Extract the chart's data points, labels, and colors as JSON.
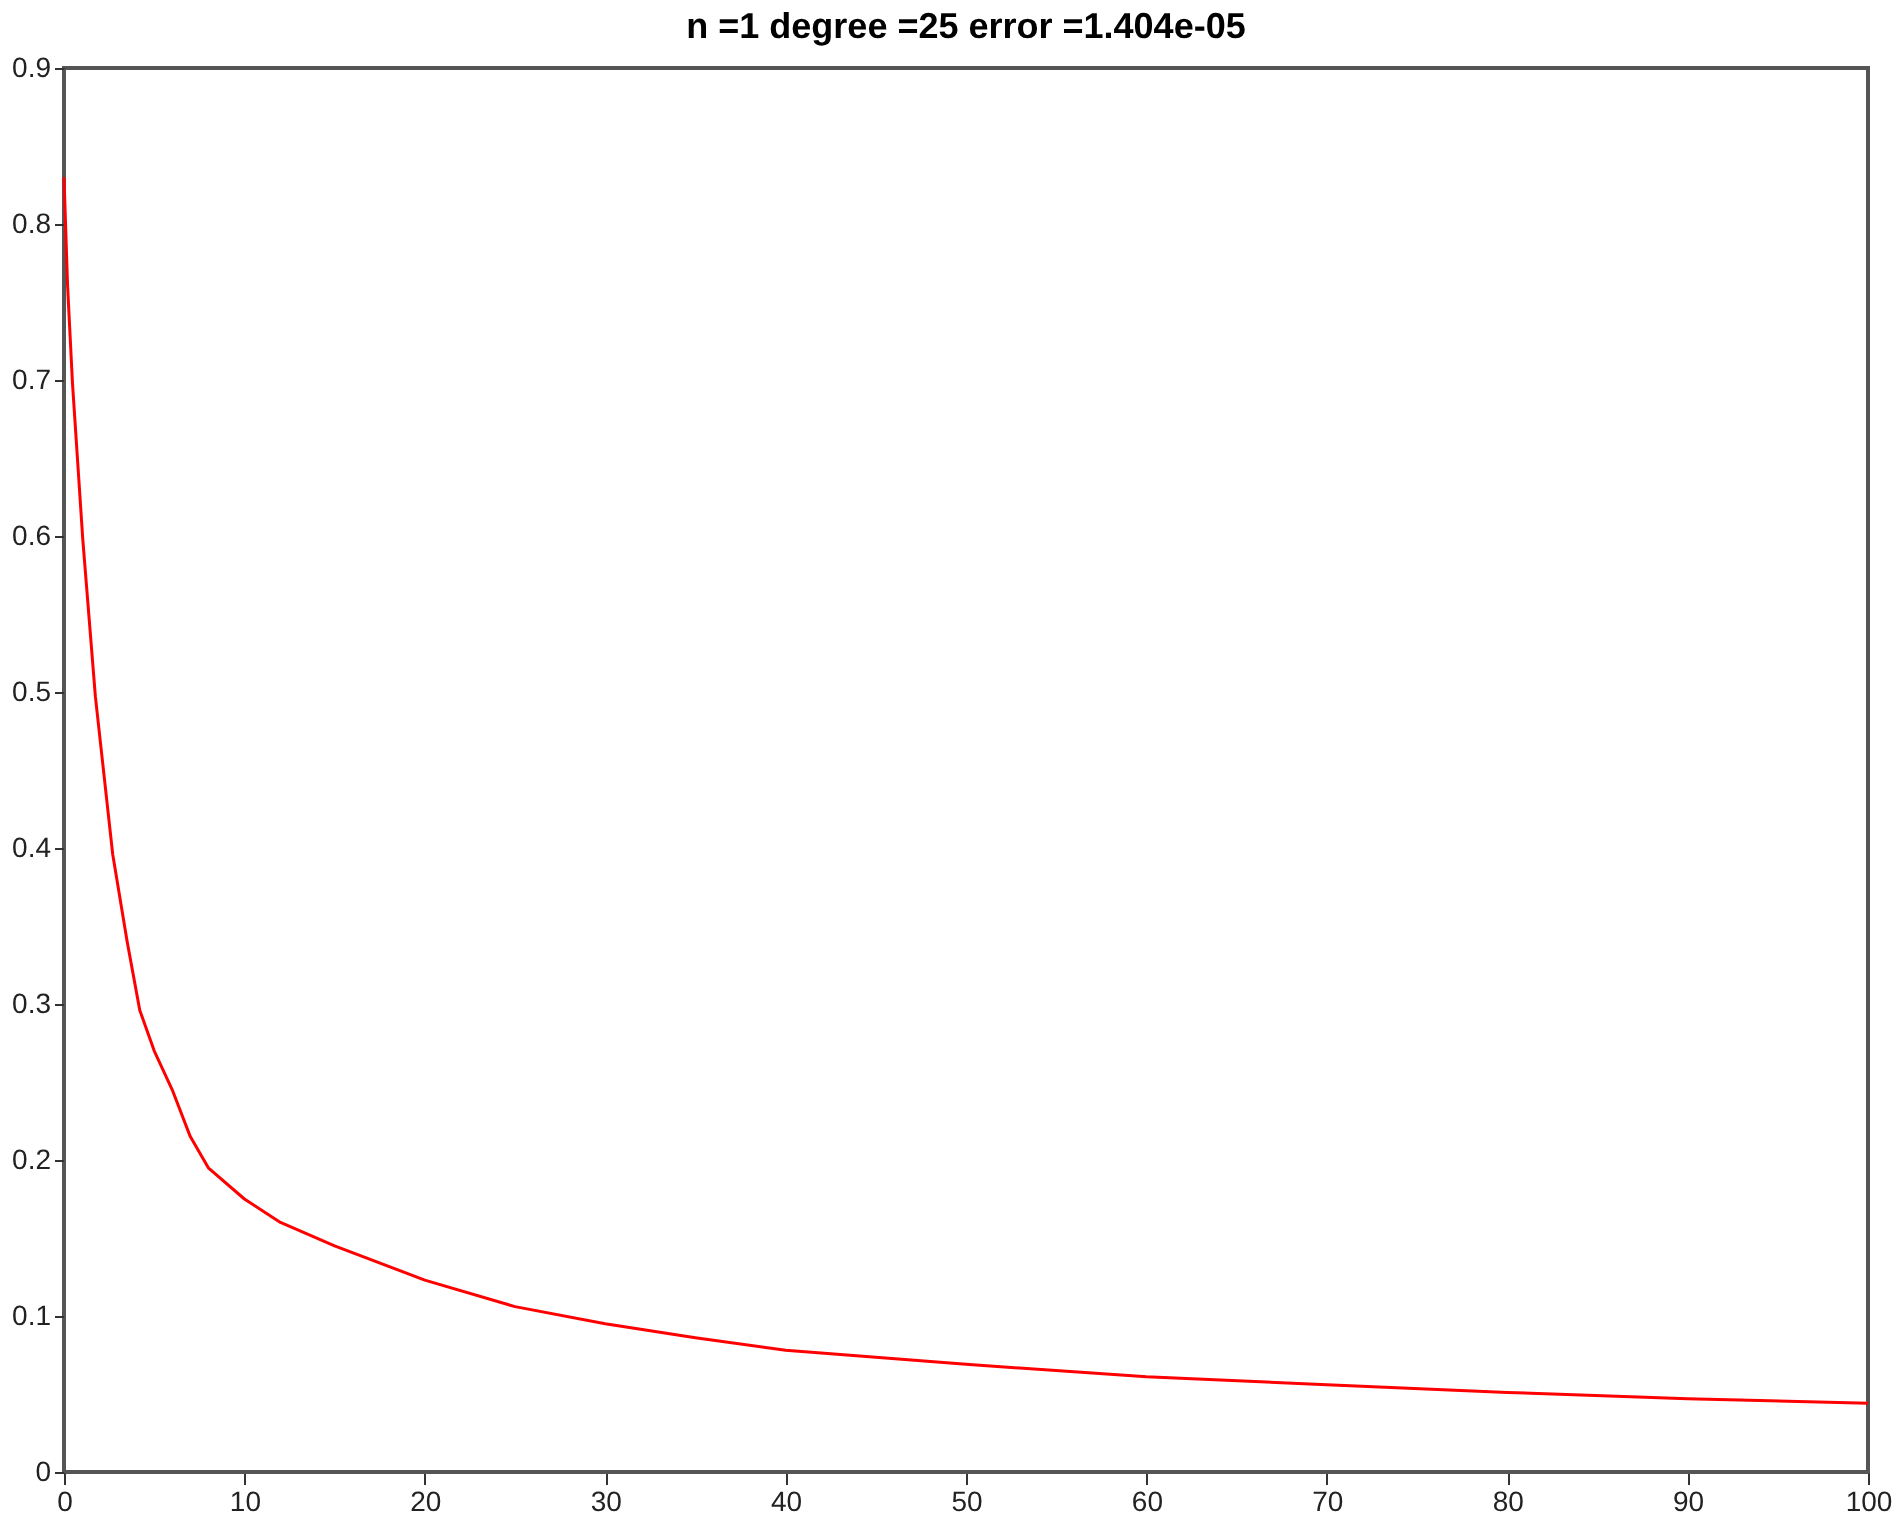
{
  "chart_data": {
    "type": "line",
    "title": "n =1 degree =25 error =1.404e-05",
    "series": [
      {
        "color": "#ff0000",
        "x": [
          0,
          0.2,
          0.47,
          1.04,
          1.74,
          2.7,
          3.5,
          4.2,
          5,
          6,
          7,
          8,
          10,
          12,
          15,
          20,
          25,
          30,
          35,
          40,
          50,
          60,
          70,
          80,
          90,
          100
        ],
        "values": [
          0.83,
          0.76,
          0.698,
          0.598,
          0.497,
          0.396,
          0.34,
          0.296,
          0.27,
          0.245,
          0.215,
          0.195,
          0.175,
          0.16,
          0.145,
          0.123,
          0.106,
          0.095,
          0.086,
          0.078,
          0.069,
          0.061,
          0.056,
          0.051,
          0.047,
          0.044
        ]
      }
    ],
    "xlim": [
      0,
      100
    ],
    "xticks": [
      0,
      10,
      20,
      30,
      40,
      50,
      60,
      70,
      80,
      90,
      100
    ],
    "ylim": [
      0,
      0.9
    ],
    "yticks": [
      0,
      0.1,
      0.2,
      0.3,
      0.4,
      0.5,
      0.6,
      0.7,
      0.8,
      0.9
    ],
    "grid": false,
    "marker": "none",
    "line_style": "solid"
  }
}
